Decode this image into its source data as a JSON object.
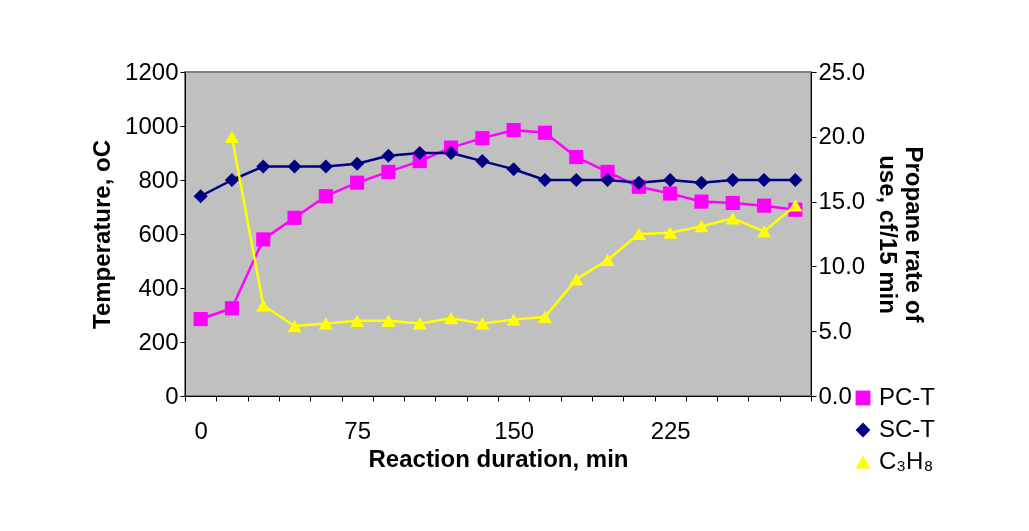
{
  "chart_data": {
    "type": "line",
    "xlabel": "Reaction duration, min",
    "ylabel": "Temperature, oC",
    "y2label": "Propane rate of\nuse, cf/15 min",
    "categories": [
      "0",
      null,
      null,
      null,
      null,
      "75",
      null,
      null,
      null,
      null,
      "150",
      null,
      null,
      null,
      null,
      "225",
      null,
      null,
      null,
      null
    ],
    "series": [
      {
        "name": "PC-T",
        "color": "#ff00ff",
        "marker": "square",
        "values": [
          285,
          325,
          580,
          660,
          740,
          790,
          830,
          870,
          920,
          955,
          985,
          975,
          885,
          830,
          775,
          750,
          720,
          715,
          705,
          690
        ]
      },
      {
        "name": "SC-T",
        "color": "#000080",
        "marker": "diamond",
        "values": [
          740,
          800,
          850,
          850,
          850,
          860,
          890,
          900,
          900,
          870,
          840,
          800,
          800,
          800,
          790,
          800,
          790,
          800,
          800,
          800
        ]
      },
      {
        "name": "C₃H₈",
        "color": "#ffff00",
        "marker": "triangle",
        "axis": "y2",
        "values": [
          null,
          20.0,
          7.0,
          5.4,
          5.6,
          5.8,
          5.8,
          5.6,
          6.0,
          5.6,
          5.9,
          6.1,
          9.0,
          10.5,
          12.5,
          12.6,
          13.1,
          13.7,
          12.7,
          14.7
        ]
      }
    ],
    "ylim": [
      0,
      1200
    ],
    "yticks": [
      0,
      200,
      400,
      600,
      800,
      1000,
      1200
    ],
    "y2lim": [
      0,
      25
    ],
    "y2ticks": [
      {
        "value": 0,
        "label": "0.0"
      },
      {
        "value": 5,
        "label": "5.0"
      },
      {
        "value": 10,
        "label": "10.0"
      },
      {
        "value": 15,
        "label": "15.0"
      },
      {
        "value": 20,
        "label": "20.0"
      },
      {
        "value": 25,
        "label": "25.0"
      }
    ],
    "grid": false,
    "legend": "bottom right",
    "line_style": "solid"
  }
}
